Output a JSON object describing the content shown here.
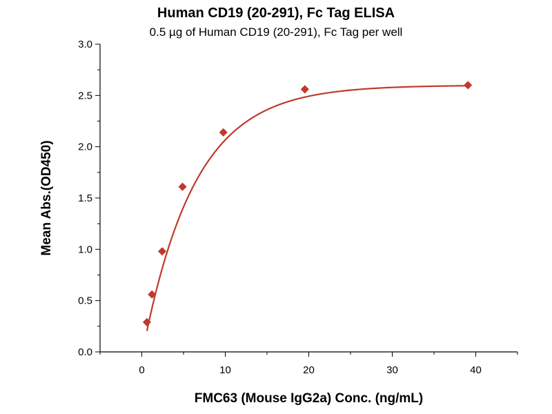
{
  "chart_data": {
    "type": "scatter",
    "title": "Human CD19 (20-291), Fc Tag ELISA",
    "subtitle": "0.5 µg of Human CD19 (20-291), Fc Tag per well",
    "xlabel": "FMC63 (Mouse IgG2a) Conc. (ng/mL)",
    "ylabel": "Mean Abs.(OD450)",
    "xlim": [
      -5,
      45
    ],
    "ylim": [
      0,
      3
    ],
    "x_ticks": [
      "0",
      "10",
      "20",
      "30",
      "40"
    ],
    "y_ticks": [
      "0.0",
      "0.5",
      "1.0",
      "1.5",
      "2.0",
      "2.5",
      "3.0"
    ],
    "grid": false,
    "series": [
      {
        "marker": "diamond",
        "color": "#c0392b",
        "points": [
          {
            "x": 0.61,
            "y": 0.29
          },
          {
            "x": 1.22,
            "y": 0.56
          },
          {
            "x": 2.44,
            "y": 0.98
          },
          {
            "x": 4.88,
            "y": 1.61
          },
          {
            "x": 9.77,
            "y": 2.14
          },
          {
            "x": 19.53,
            "y": 2.56
          },
          {
            "x": 39.06,
            "y": 2.6
          }
        ],
        "fit_curve": true
      }
    ]
  }
}
